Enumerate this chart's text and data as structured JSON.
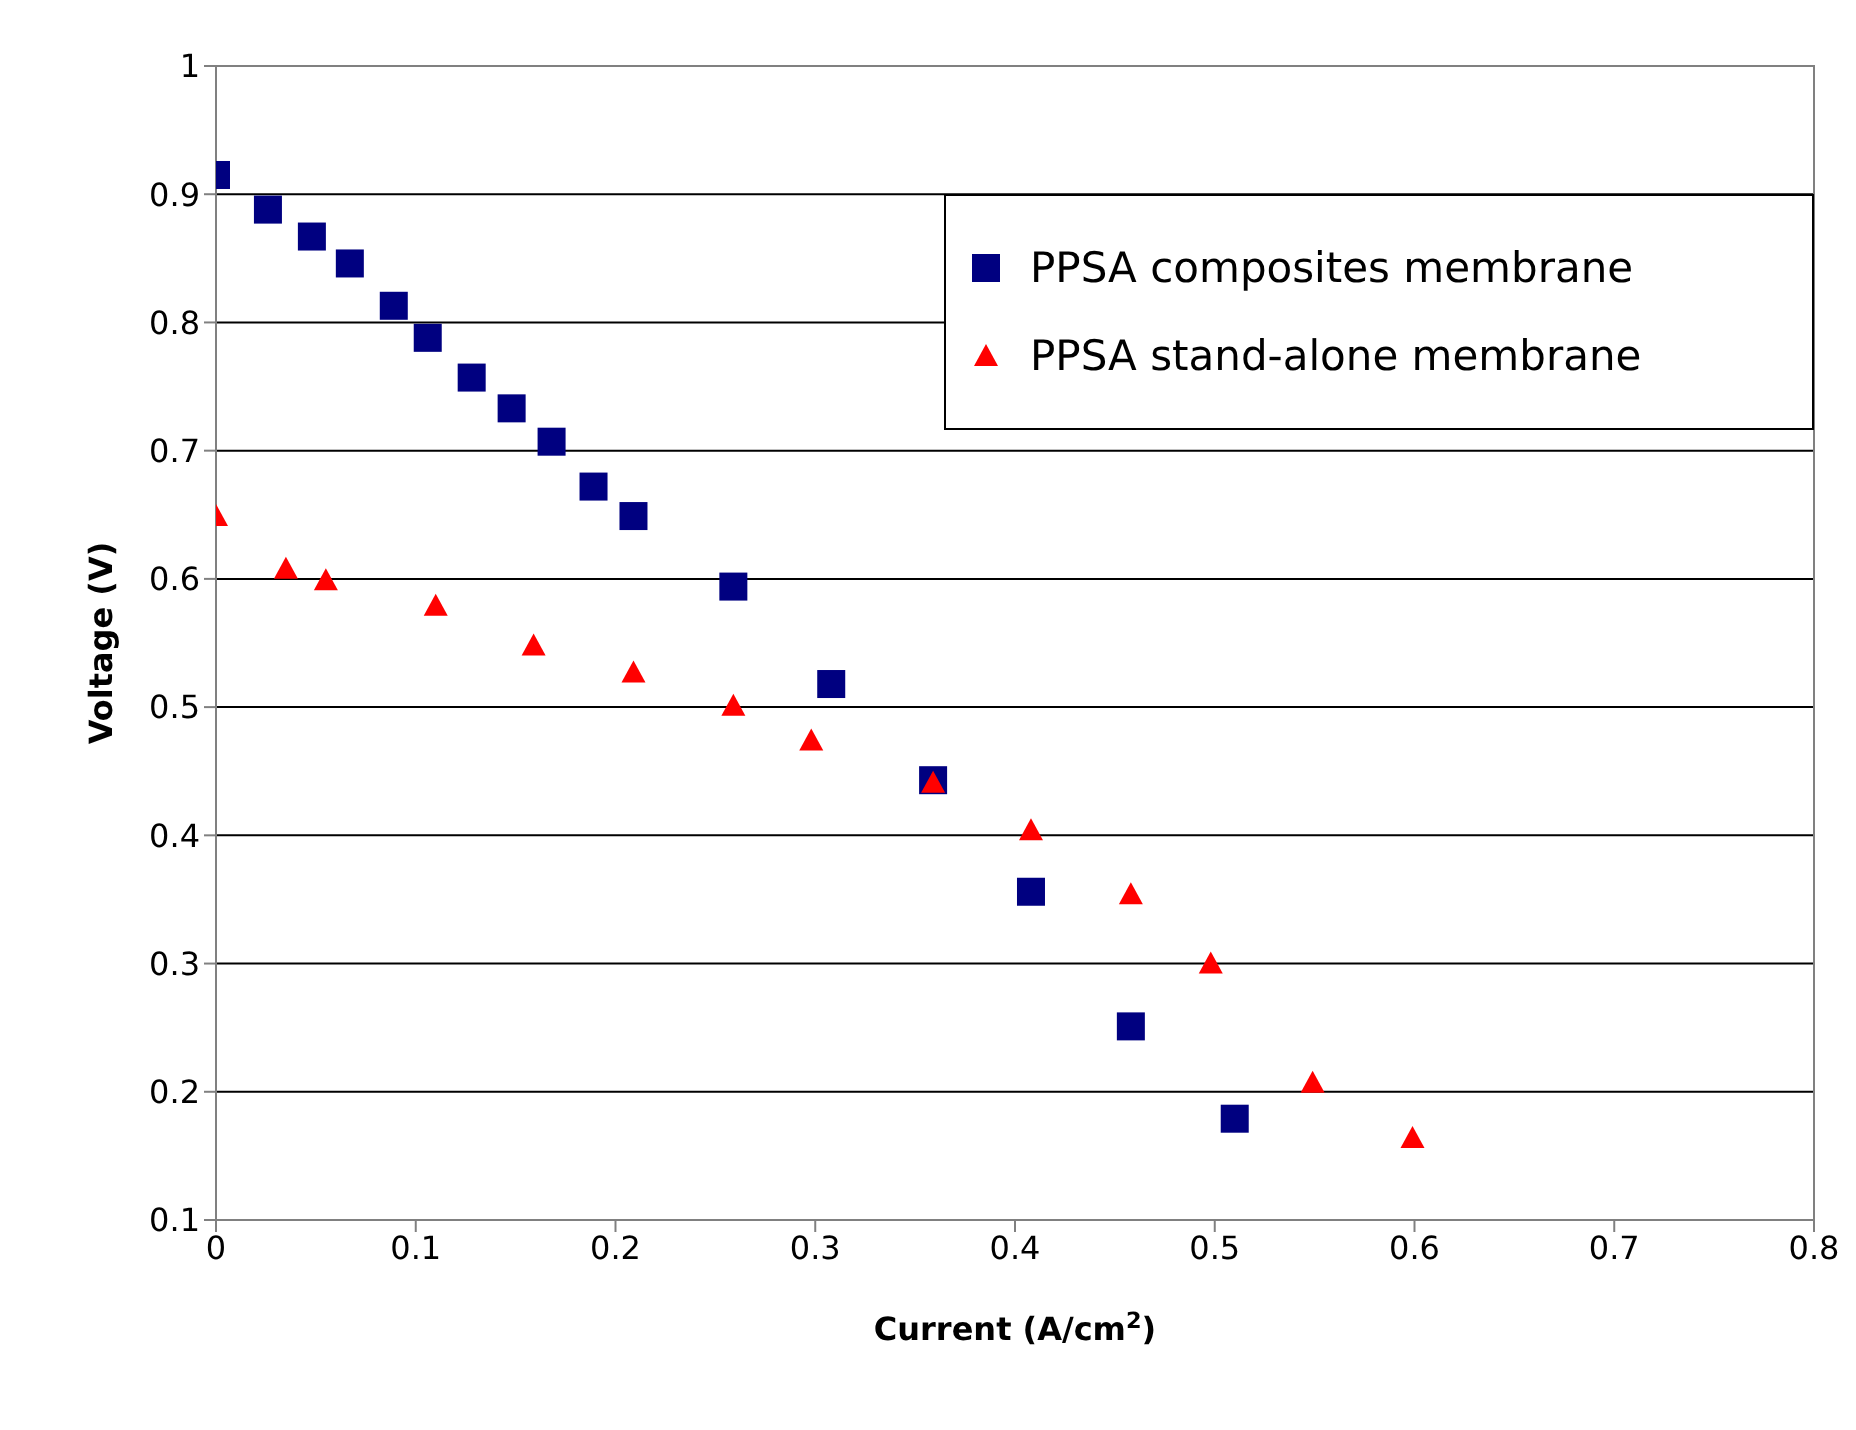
{
  "chart_data": {
    "type": "scatter",
    "xlabel": "Current (A/cm$^{2}$)",
    "ylabel": "Voltage (V)",
    "xlim": [
      0,
      0.8
    ],
    "xticks": [
      0,
      0.1,
      0.2,
      0.3,
      0.4,
      0.5,
      0.6,
      0.7,
      0.8
    ],
    "ylim": [
      0.1,
      1
    ],
    "yticks": [
      0.1,
      0.2,
      0.3,
      0.4,
      0.5,
      0.6,
      0.7,
      0.8,
      0.9,
      1
    ],
    "grid": "y",
    "legend": "top right",
    "series": [
      {
        "name": "PPSA composites membrane",
        "color": "#000080",
        "marker": "square",
        "x": [
          0,
          0.026,
          0.048,
          0.067,
          0.089,
          0.106,
          0.128,
          0.148,
          0.168,
          0.189,
          0.209,
          0.259,
          0.308,
          0.359,
          0.408,
          0.458,
          0.51
        ],
        "values": [
          0.915,
          0.888,
          0.867,
          0.846,
          0.813,
          0.788,
          0.757,
          0.733,
          0.707,
          0.672,
          0.649,
          0.594,
          0.518,
          0.443,
          0.356,
          0.251,
          0.179
        ]
      },
      {
        "name": "PPSA stand-alone membrane",
        "color": "#ff0000",
        "marker": "triangle",
        "x": [
          0,
          0.035,
          0.055,
          0.11,
          0.159,
          0.209,
          0.259,
          0.298,
          0.359,
          0.408,
          0.458,
          0.498,
          0.549,
          0.599
        ],
        "values": [
          0.649,
          0.608,
          0.599,
          0.579,
          0.548,
          0.527,
          0.501,
          0.474,
          0.441,
          0.404,
          0.354,
          0.3,
          0.207,
          0.164
        ]
      }
    ]
  }
}
